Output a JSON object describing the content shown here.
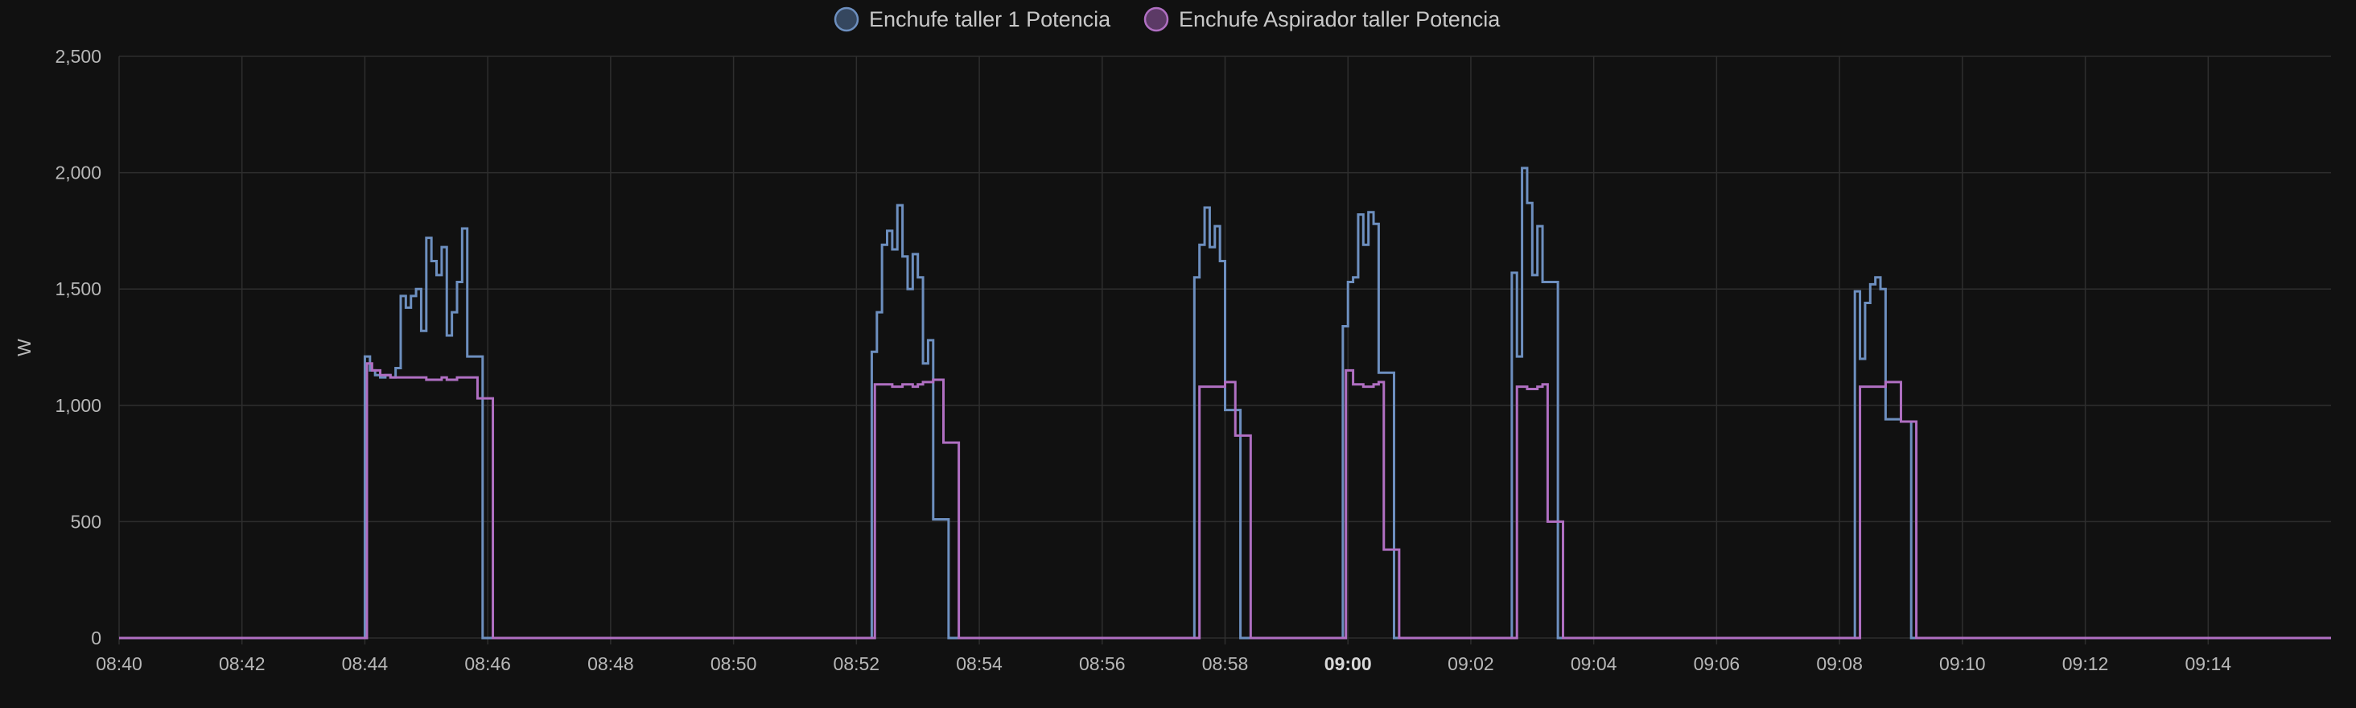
{
  "chart_data": {
    "type": "line",
    "step": true,
    "ylabel": "W",
    "ylim": [
      0,
      2500
    ],
    "xlim": [
      "08:40",
      "09:16"
    ],
    "y_ticks": [
      0,
      500,
      1000,
      1500,
      2000,
      2500
    ],
    "y_tick_labels": [
      "0",
      "500",
      "1,000",
      "1,500",
      "2,000",
      "2,500"
    ],
    "x_ticks": [
      "08:40",
      "08:42",
      "08:44",
      "08:46",
      "08:48",
      "08:50",
      "08:52",
      "08:54",
      "08:56",
      "08:58",
      "09:00",
      "09:02",
      "09:04",
      "09:06",
      "09:08",
      "09:10",
      "09:12",
      "09:14"
    ],
    "x_tick_bold": "09:00",
    "grid": true,
    "legend_position": "top-center",
    "series": [
      {
        "name": "Enchufe taller 1 Potencia",
        "color": "#6d8fbf",
        "fill": "#35475f",
        "points": [
          [
            "08:40:00",
            0
          ],
          [
            "08:44:00",
            1210
          ],
          [
            "08:44:05",
            1150
          ],
          [
            "08:44:10",
            1130
          ],
          [
            "08:44:15",
            1120
          ],
          [
            "08:44:20",
            1130
          ],
          [
            "08:44:25",
            1120
          ],
          [
            "08:44:30",
            1160
          ],
          [
            "08:44:35",
            1470
          ],
          [
            "08:44:40",
            1420
          ],
          [
            "08:44:45",
            1470
          ],
          [
            "08:44:50",
            1500
          ],
          [
            "08:44:55",
            1320
          ],
          [
            "08:45:00",
            1720
          ],
          [
            "08:45:05",
            1620
          ],
          [
            "08:45:10",
            1560
          ],
          [
            "08:45:15",
            1680
          ],
          [
            "08:45:20",
            1300
          ],
          [
            "08:45:25",
            1400
          ],
          [
            "08:45:30",
            1530
          ],
          [
            "08:45:35",
            1760
          ],
          [
            "08:45:40",
            1210
          ],
          [
            "08:45:55",
            0
          ],
          [
            "08:52:15",
            1230
          ],
          [
            "08:52:20",
            1400
          ],
          [
            "08:52:25",
            1690
          ],
          [
            "08:52:30",
            1750
          ],
          [
            "08:52:35",
            1670
          ],
          [
            "08:52:40",
            1860
          ],
          [
            "08:52:45",
            1640
          ],
          [
            "08:52:50",
            1500
          ],
          [
            "08:52:55",
            1650
          ],
          [
            "08:53:00",
            1550
          ],
          [
            "08:53:05",
            1180
          ],
          [
            "08:53:10",
            1280
          ],
          [
            "08:53:15",
            510
          ],
          [
            "08:53:30",
            0
          ],
          [
            "08:57:30",
            1550
          ],
          [
            "08:57:35",
            1690
          ],
          [
            "08:57:40",
            1850
          ],
          [
            "08:57:45",
            1680
          ],
          [
            "08:57:50",
            1770
          ],
          [
            "08:57:55",
            1620
          ],
          [
            "08:58:00",
            980
          ],
          [
            "08:58:15",
            0
          ],
          [
            "08:59:55",
            1340
          ],
          [
            "09:00:00",
            1530
          ],
          [
            "09:00:05",
            1550
          ],
          [
            "09:00:10",
            1820
          ],
          [
            "09:00:15",
            1690
          ],
          [
            "09:00:20",
            1830
          ],
          [
            "09:00:25",
            1780
          ],
          [
            "09:00:30",
            1140
          ],
          [
            "09:00:45",
            0
          ],
          [
            "09:02:40",
            1570
          ],
          [
            "09:02:45",
            1210
          ],
          [
            "09:02:50",
            2020
          ],
          [
            "09:02:55",
            1870
          ],
          [
            "09:03:00",
            1560
          ],
          [
            "09:03:05",
            1770
          ],
          [
            "09:03:10",
            1530
          ],
          [
            "09:03:25",
            0
          ],
          [
            "09:08:15",
            1490
          ],
          [
            "09:08:20",
            1200
          ],
          [
            "09:08:25",
            1440
          ],
          [
            "09:08:30",
            1520
          ],
          [
            "09:08:35",
            1550
          ],
          [
            "09:08:40",
            1500
          ],
          [
            "09:08:45",
            940
          ],
          [
            "09:09:00",
            930
          ],
          [
            "09:09:10",
            0
          ],
          [
            "09:16:00",
            0
          ]
        ]
      },
      {
        "name": "Enchufe Aspirador taller Potencia",
        "color": "#b06fc2",
        "fill": "#5c3a66",
        "points": [
          [
            "08:40:00",
            0
          ],
          [
            "08:44:02",
            1180
          ],
          [
            "08:44:07",
            1150
          ],
          [
            "08:44:15",
            1130
          ],
          [
            "08:44:25",
            1120
          ],
          [
            "08:44:35",
            1120
          ],
          [
            "08:44:45",
            1120
          ],
          [
            "08:45:00",
            1110
          ],
          [
            "08:45:10",
            1110
          ],
          [
            "08:45:15",
            1120
          ],
          [
            "08:45:20",
            1110
          ],
          [
            "08:45:30",
            1120
          ],
          [
            "08:45:50",
            1030
          ],
          [
            "08:46:05",
            0
          ],
          [
            "08:52:18",
            1090
          ],
          [
            "08:52:35",
            1080
          ],
          [
            "08:52:45",
            1090
          ],
          [
            "08:52:55",
            1080
          ],
          [
            "08:53:00",
            1090
          ],
          [
            "08:53:05",
            1100
          ],
          [
            "08:53:15",
            1110
          ],
          [
            "08:53:25",
            840
          ],
          [
            "08:53:40",
            0
          ],
          [
            "08:57:35",
            1080
          ],
          [
            "08:58:00",
            1100
          ],
          [
            "08:58:10",
            870
          ],
          [
            "08:58:25",
            0
          ],
          [
            "08:59:58",
            1150
          ],
          [
            "09:00:05",
            1090
          ],
          [
            "09:00:15",
            1080
          ],
          [
            "09:00:25",
            1090
          ],
          [
            "09:00:30",
            1100
          ],
          [
            "09:00:35",
            380
          ],
          [
            "09:00:50",
            0
          ],
          [
            "09:02:45",
            1080
          ],
          [
            "09:02:55",
            1070
          ],
          [
            "09:03:05",
            1080
          ],
          [
            "09:03:10",
            1090
          ],
          [
            "09:03:15",
            500
          ],
          [
            "09:03:30",
            0
          ],
          [
            "09:08:20",
            1080
          ],
          [
            "09:08:45",
            1100
          ],
          [
            "09:09:00",
            930
          ],
          [
            "09:09:15",
            0
          ],
          [
            "09:16:00",
            0
          ]
        ]
      }
    ]
  }
}
